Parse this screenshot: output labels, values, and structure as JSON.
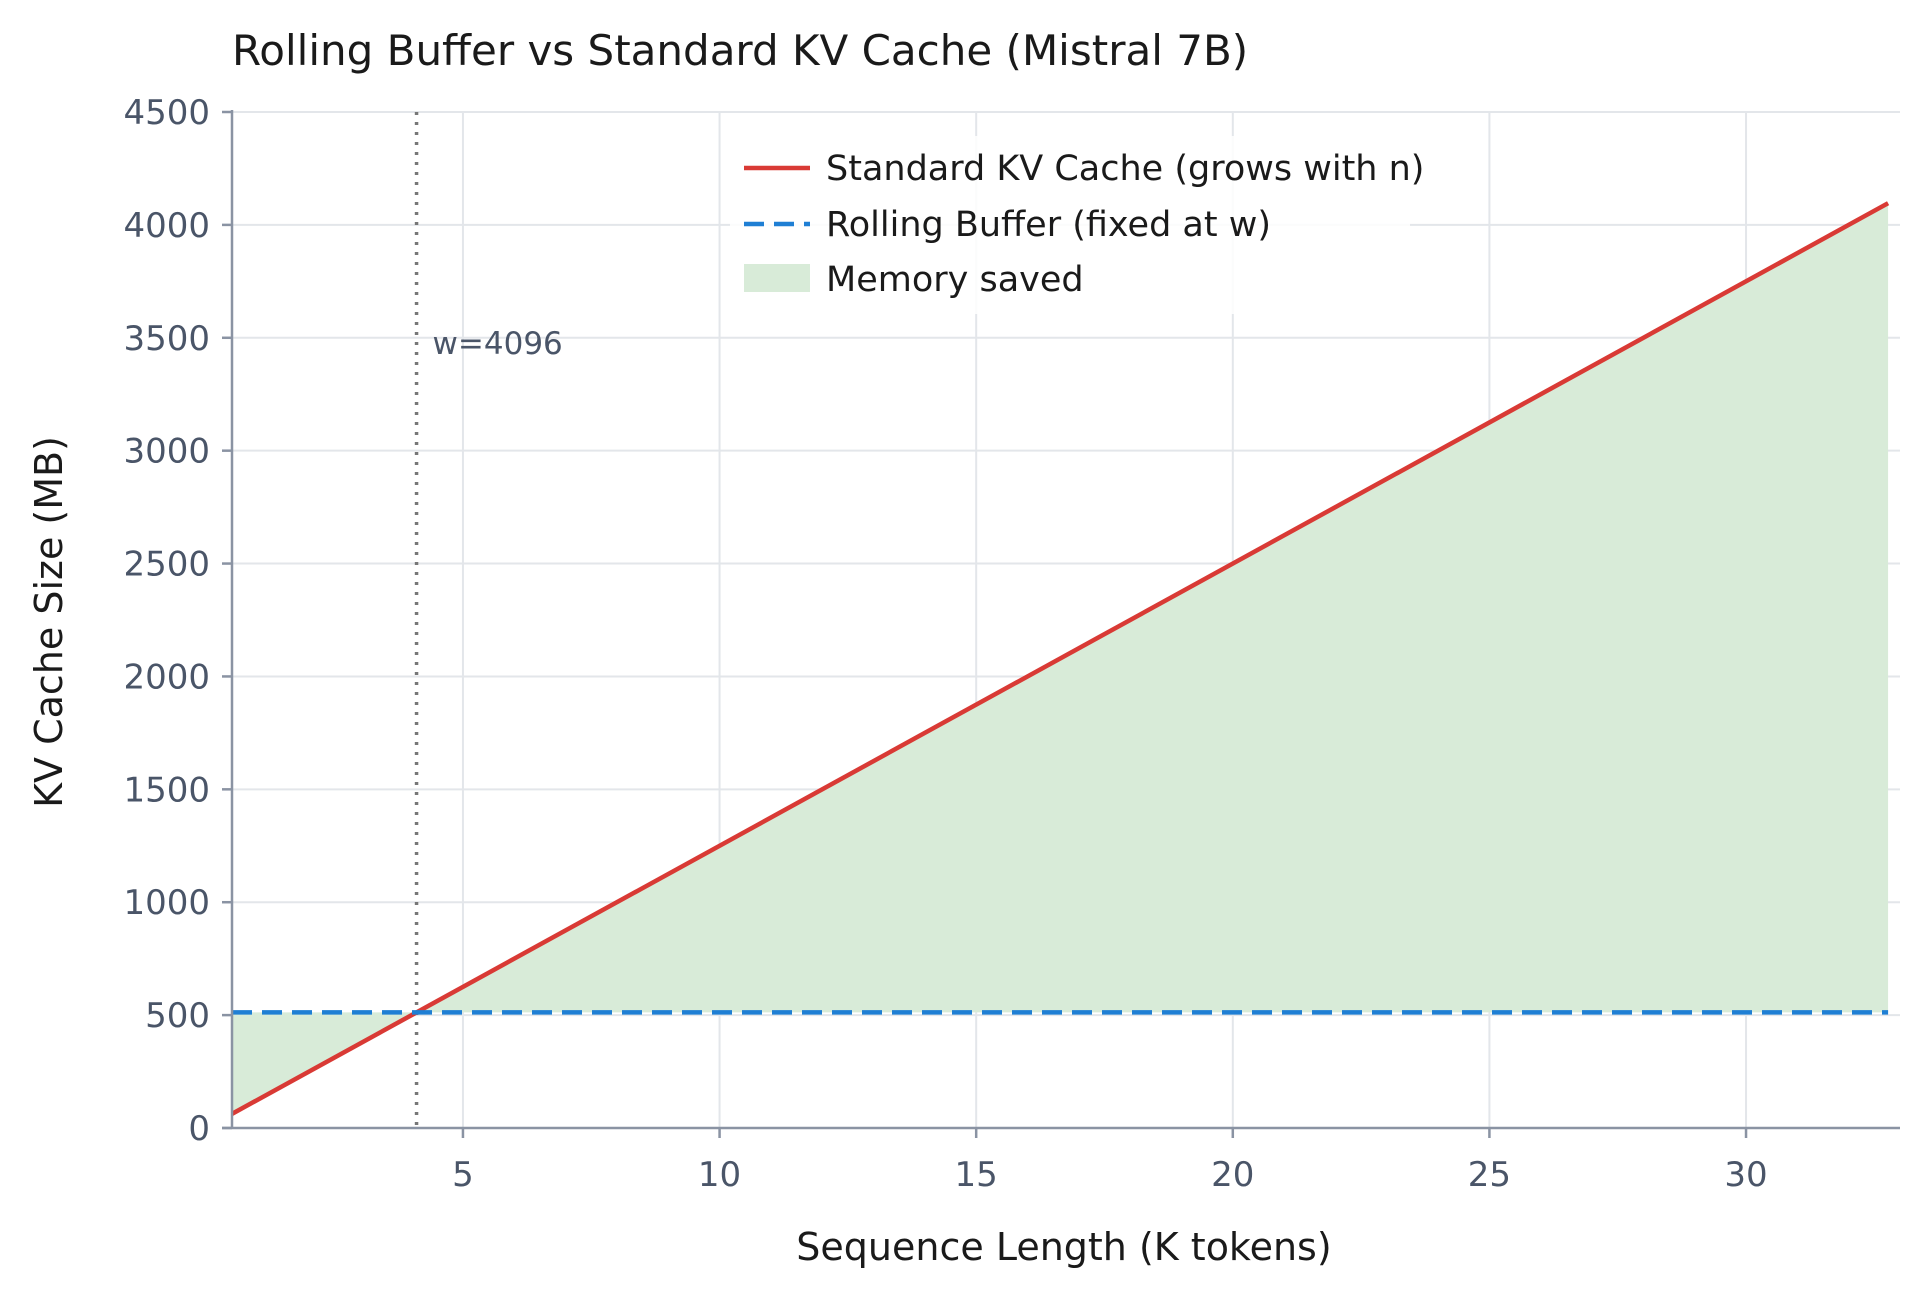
{
  "chart_data": {
    "type": "line",
    "title": "Rolling Buffer vs Standard KV Cache (Mistral 7B)",
    "xlabel": "Sequence Length (K tokens)",
    "ylabel": "KV Cache Size (MB)",
    "xlim": [
      0.5,
      33
    ],
    "ylim": [
      0,
      4500
    ],
    "xticks": [
      5,
      10,
      15,
      20,
      25,
      30
    ],
    "yticks": [
      0,
      500,
      1000,
      1500,
      2000,
      2500,
      3000,
      3500,
      4000,
      4500
    ],
    "grid": true,
    "legend_position": "top-center",
    "series": [
      {
        "name": "Standard KV Cache (grows with n)",
        "style": "solid",
        "color": "#d93a35",
        "x": [
          0.5,
          32.768
        ],
        "y": [
          62.5,
          4096
        ]
      },
      {
        "name": "Rolling Buffer (fixed at w)",
        "style": "dashed",
        "color": "#1f7fd4",
        "x": [
          0.5,
          32.768
        ],
        "y": [
          512,
          512
        ]
      }
    ],
    "fill": {
      "name": "Memory saved",
      "color": "#d8ebd8"
    },
    "annotations": [
      {
        "type": "vline",
        "x": 4.096,
        "style": "dotted",
        "color": "#777777",
        "text": "w=4096",
        "text_y": 3500
      }
    ]
  }
}
